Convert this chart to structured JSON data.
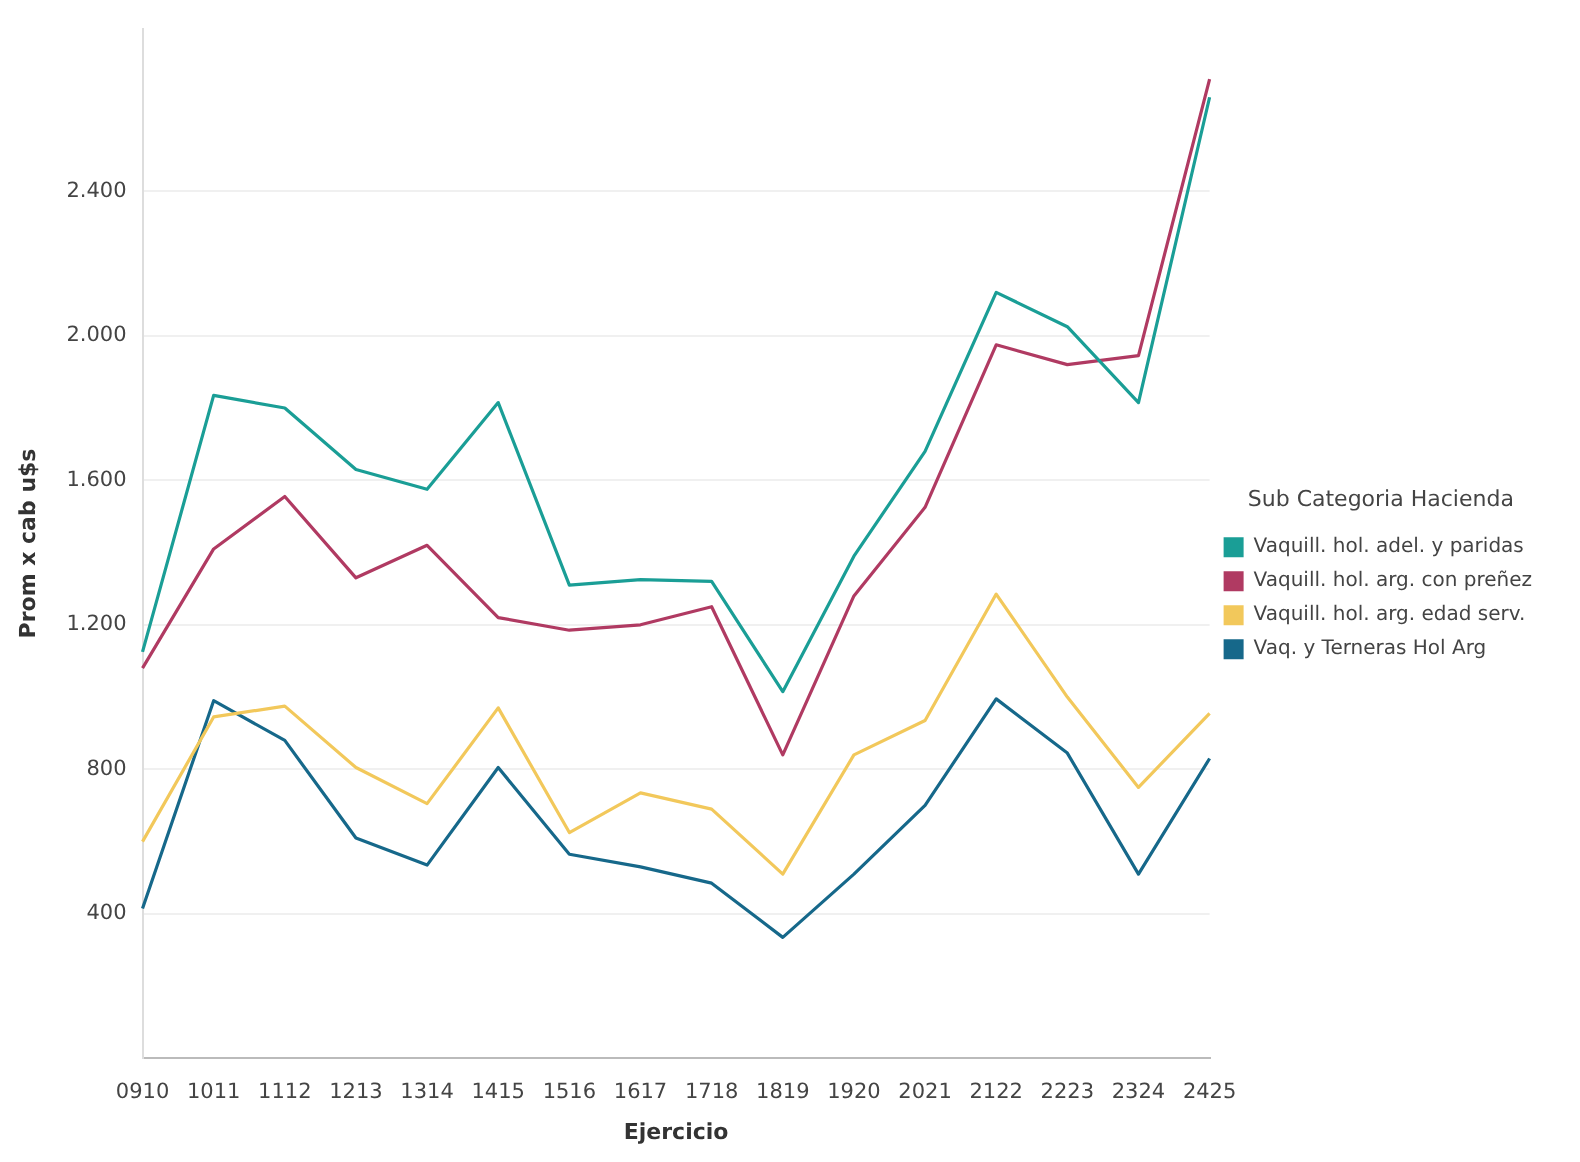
{
  "chart_data": {
    "type": "line",
    "xlabel": "Ejercicio",
    "ylabel": "Prom x cab u$s",
    "legend_title": "Sub Categoria Hacienda",
    "legend": "right",
    "grid": "y",
    "marker": "none",
    "line_style": "solid",
    "categories": [
      "0910",
      "1011",
      "1112",
      "1213",
      "1314",
      "1415",
      "1516",
      "1617",
      "1718",
      "1819",
      "1920",
      "2021",
      "2122",
      "2223",
      "2324",
      "2425"
    ],
    "ylim": [
      0,
      2850
    ],
    "yticks": [
      {
        "value": 400,
        "label": "400"
      },
      {
        "value": 800,
        "label": "800"
      },
      {
        "value": 1200,
        "label": "1.200"
      },
      {
        "value": 1600,
        "label": "1.600"
      },
      {
        "value": 2000,
        "label": "2.000"
      },
      {
        "value": 2400,
        "label": "2.400"
      }
    ],
    "series": [
      {
        "name": "Vaquill. hol. adel. y paridas",
        "color": "#1a9e96",
        "values": [
          1125,
          1835,
          1800,
          1630,
          1575,
          1815,
          1310,
          1325,
          1320,
          1015,
          1390,
          1680,
          2120,
          2025,
          1815,
          2660
        ]
      },
      {
        "name": "Vaquill. hol. arg. con preñez",
        "color": "#b03a62",
        "values": [
          1080,
          1410,
          1555,
          1330,
          1420,
          1220,
          1185,
          1200,
          1250,
          840,
          1280,
          1525,
          1975,
          1920,
          1945,
          2710
        ]
      },
      {
        "name": "Vaquill. hol. arg. edad serv.",
        "color": "#f2c85b",
        "values": [
          600,
          945,
          975,
          805,
          705,
          970,
          625,
          735,
          690,
          510,
          840,
          935,
          1285,
          1000,
          750,
          955
        ]
      },
      {
        "name": "Vaq. y Terneras Hol Arg",
        "color": "#16688a",
        "values": [
          415,
          990,
          880,
          610,
          535,
          805,
          565,
          530,
          485,
          335,
          510,
          700,
          995,
          845,
          510,
          830
        ]
      }
    ]
  }
}
